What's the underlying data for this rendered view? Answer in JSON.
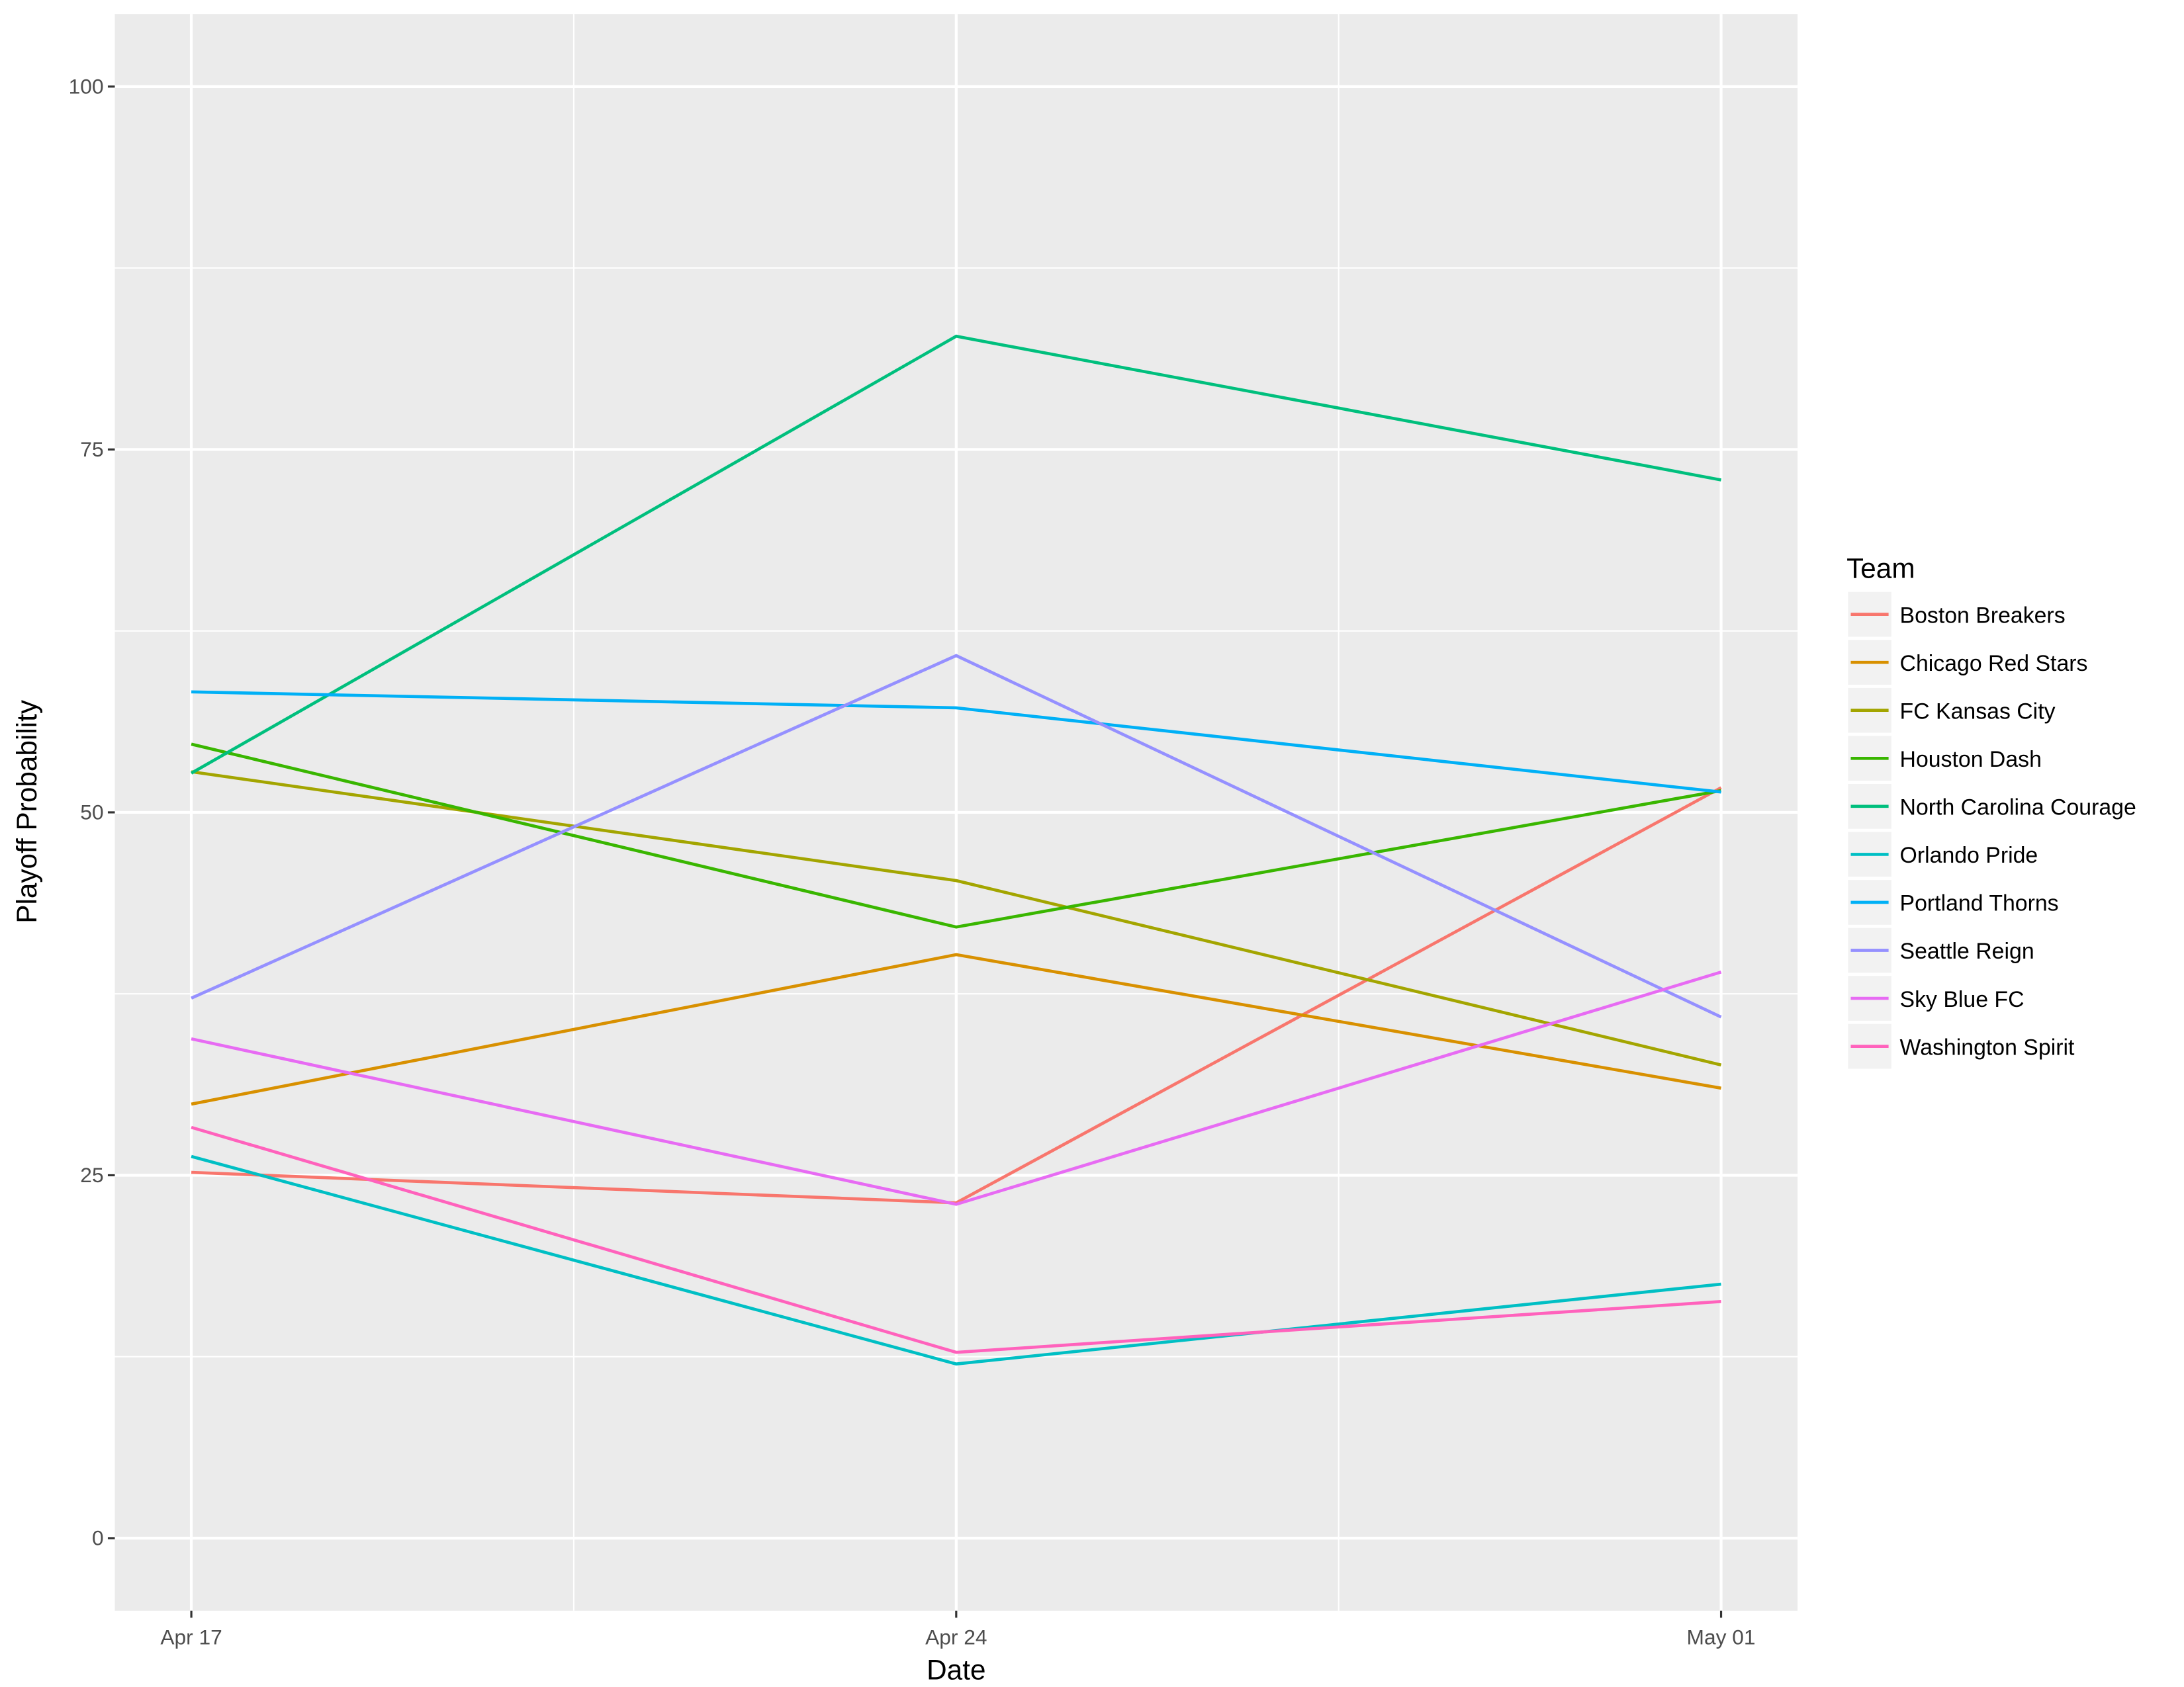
{
  "chart_data": {
    "type": "line",
    "title": "",
    "xlabel": "Date",
    "ylabel": "Playoff Probability",
    "x": [
      "Apr 17",
      "Apr 24",
      "May 01"
    ],
    "x_day_offsets": [
      0,
      7,
      14
    ],
    "xlim_days": [
      -0.7,
      14.7
    ],
    "x_ticks": [
      {
        "label": "Apr 17",
        "day": 0
      },
      {
        "label": "Apr 24",
        "day": 7
      },
      {
        "label": "May 01",
        "day": 14
      }
    ],
    "x_minor_grid_days": [
      3.5,
      10.5
    ],
    "ylim": [
      -5,
      105
    ],
    "y_ticks": [
      0,
      25,
      50,
      75,
      100
    ],
    "y_minor_grid": [
      12.5,
      37.5,
      62.5,
      87.5
    ],
    "grid": true,
    "legend": {
      "title": "Team",
      "placement": "right"
    },
    "background": "#ebebeb",
    "series": [
      {
        "name": "Boston Breakers",
        "color": "#F8766D",
        "values": [
          25.2,
          23.1,
          51.7
        ]
      },
      {
        "name": "Chicago Red Stars",
        "color": "#D89000",
        "values": [
          29.9,
          40.2,
          31.0
        ]
      },
      {
        "name": "FC Kansas City",
        "color": "#A3A500",
        "values": [
          52.8,
          45.3,
          32.6
        ]
      },
      {
        "name": "Houston Dash",
        "color": "#39B600",
        "values": [
          54.7,
          42.1,
          51.5
        ]
      },
      {
        "name": "North Carolina Courage",
        "color": "#00BF7D",
        "values": [
          52.7,
          82.8,
          72.9
        ]
      },
      {
        "name": "Orlando Pride",
        "color": "#00BFC4",
        "values": [
          26.3,
          12.0,
          17.5
        ]
      },
      {
        "name": "Portland Thorns",
        "color": "#00B0F6",
        "values": [
          58.3,
          57.2,
          51.4
        ]
      },
      {
        "name": "Seattle Reign",
        "color": "#9590FF",
        "values": [
          37.2,
          60.8,
          35.9
        ]
      },
      {
        "name": "Sky Blue FC",
        "color": "#E76BF3",
        "values": [
          34.4,
          23.0,
          39.0
        ]
      },
      {
        "name": "Washington Spirit",
        "color": "#FF62BC",
        "values": [
          28.3,
          12.8,
          16.3
        ]
      }
    ]
  }
}
